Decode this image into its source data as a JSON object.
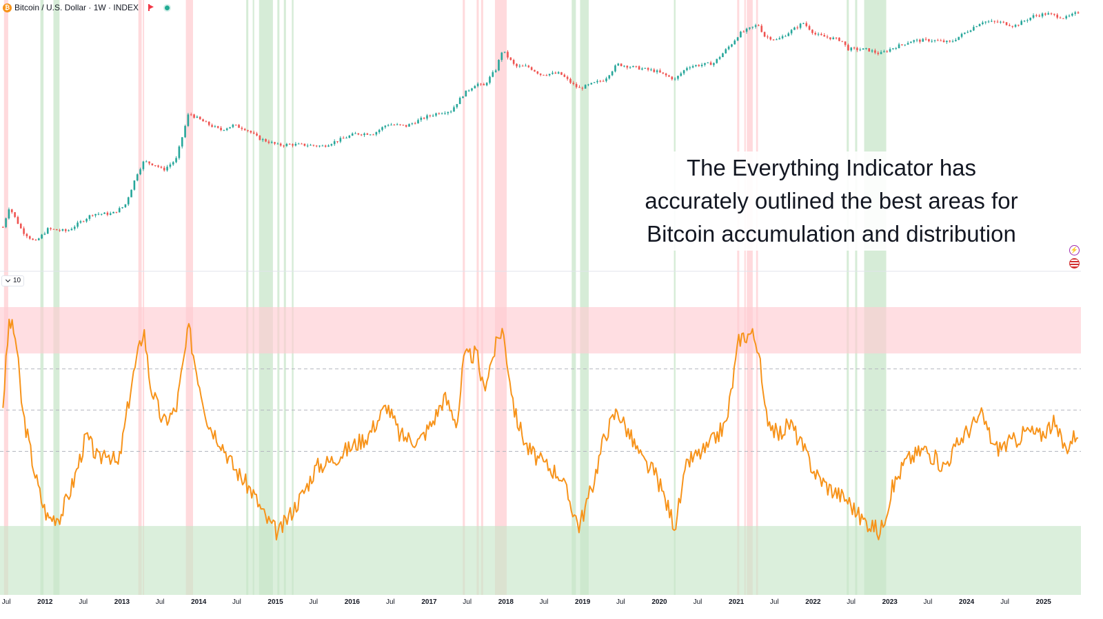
{
  "header": {
    "symbol_title": "Bitcoin / U.S. Dollar · 1W · INDEX",
    "symbol_icon": "bitcoin-icon",
    "flag_icon": "red-flag-icon",
    "status_icon": "market-open-dot-icon",
    "status_color": "#22ab94"
  },
  "indicator_pane": {
    "collapse_label": "10",
    "collapse_icon": "chevron-down-icon"
  },
  "side_icons": [
    "lightning-icon",
    "us-flag-icon"
  ],
  "annotation": {
    "lines": [
      "The Everything Indicator has",
      "accurately outlined the best areas for",
      "Bitcoin accumulation and distribution"
    ]
  },
  "colors": {
    "up_candle": "#26a69a",
    "down_candle": "#ef5350",
    "indicator_line": "#f7931a",
    "distribution_zone": "#ffcdd2",
    "accumulation_zone": "#c8e6c9"
  },
  "chart_data": [
    {
      "type": "line",
      "title": "Bitcoin / U.S. Dollar · 1W · INDEX",
      "x_axis": "date",
      "y_scale": "log",
      "x_range": [
        "2011-06",
        "2025-06"
      ],
      "y_axis_labels_shown": false,
      "grid": false,
      "x": [
        "2011-06",
        "2011-07",
        "2011-09",
        "2011-11",
        "2012-01",
        "2012-04",
        "2012-08",
        "2012-11",
        "2013-01",
        "2013-03",
        "2013-04",
        "2013-06",
        "2013-07",
        "2013-09",
        "2013-11",
        "2013-12",
        "2014-02",
        "2014-04",
        "2014-06",
        "2014-08",
        "2014-10",
        "2015-01",
        "2015-03",
        "2015-06",
        "2015-08",
        "2016-01",
        "2016-04",
        "2016-06",
        "2016-09",
        "2016-12",
        "2017-02",
        "2017-04",
        "2017-06",
        "2017-08",
        "2017-09",
        "2017-11",
        "2017-12",
        "2018-02",
        "2018-04",
        "2018-06",
        "2018-09",
        "2018-11",
        "2018-12",
        "2019-04",
        "2019-06",
        "2019-09",
        "2019-12",
        "2020-03",
        "2020-05",
        "2020-09",
        "2020-12",
        "2021-01",
        "2021-04",
        "2021-05",
        "2021-07",
        "2021-11",
        "2022-01",
        "2022-05",
        "2022-06",
        "2022-09",
        "2022-11",
        "2023-01",
        "2023-04",
        "2023-07",
        "2023-10",
        "2024-03",
        "2024-06",
        "2024-08",
        "2024-11",
        "2025-01",
        "2025-04",
        "2025-06"
      ],
      "close": [
        6,
        15,
        5,
        3,
        5.5,
        5,
        11,
        11,
        16,
        70,
        120,
        100,
        80,
        130,
        1100,
        900,
        650,
        500,
        620,
        520,
        340,
        250,
        260,
        250,
        240,
        420,
        430,
        650,
        600,
        900,
        1100,
        1200,
        2600,
        4200,
        3600,
        8000,
        19000,
        9000,
        9000,
        6300,
        6600,
        4000,
        3300,
        5000,
        10000,
        8500,
        7300,
        5000,
        9000,
        10500,
        27000,
        40000,
        61000,
        36000,
        30000,
        66000,
        38000,
        30000,
        20000,
        19500,
        16000,
        21000,
        29000,
        30000,
        27000,
        70000,
        67000,
        57000,
        90000,
        100000,
        82000,
        106000
      ]
    },
    {
      "type": "line",
      "name": "Everything Indicator",
      "x_axis": "date",
      "x_range": [
        "2011-06",
        "2025-06"
      ],
      "y_range": [
        0,
        1
      ],
      "y_axis_labels_shown": false,
      "reference_levels": [
        0.76,
        0.6,
        0.44
      ],
      "distribution_zone": [
        0.82,
        1.0
      ],
      "accumulation_zone": [
        0.0,
        0.15
      ],
      "x": [
        "2011-06",
        "2011-07",
        "2011-08",
        "2011-09",
        "2011-11",
        "2011-12",
        "2012-01",
        "2012-03",
        "2012-05",
        "2012-07",
        "2012-09",
        "2012-10",
        "2012-12",
        "2013-02",
        "2013-04",
        "2013-05",
        "2013-07",
        "2013-09",
        "2013-11",
        "2013-12",
        "2014-02",
        "2014-04",
        "2014-06",
        "2014-09",
        "2014-11",
        "2015-01",
        "2015-03",
        "2015-05",
        "2015-07",
        "2015-09",
        "2015-12",
        "2016-03",
        "2016-06",
        "2016-08",
        "2016-11",
        "2017-01",
        "2017-03",
        "2017-05",
        "2017-06",
        "2017-08",
        "2017-09",
        "2017-11",
        "2017-12",
        "2018-02",
        "2018-04",
        "2018-06",
        "2018-09",
        "2018-12",
        "2019-02",
        "2019-04",
        "2019-06",
        "2019-07",
        "2019-10",
        "2019-12",
        "2020-03",
        "2020-05",
        "2020-08",
        "2020-11",
        "2021-01",
        "2021-03",
        "2021-04",
        "2021-05",
        "2021-07",
        "2021-09",
        "2021-11",
        "2022-01",
        "2022-03",
        "2022-06",
        "2022-08",
        "2022-10",
        "2022-11",
        "2023-01",
        "2023-03",
        "2023-06",
        "2023-09",
        "2023-12",
        "2024-03",
        "2024-05",
        "2024-08",
        "2024-10",
        "2024-12",
        "2025-02",
        "2025-04",
        "2025-06"
      ],
      "values": [
        0.62,
        0.95,
        0.88,
        0.6,
        0.35,
        0.25,
        0.18,
        0.19,
        0.32,
        0.5,
        0.4,
        0.45,
        0.38,
        0.7,
        0.92,
        0.7,
        0.55,
        0.6,
        0.92,
        0.78,
        0.55,
        0.48,
        0.38,
        0.28,
        0.18,
        0.12,
        0.2,
        0.28,
        0.38,
        0.4,
        0.45,
        0.5,
        0.62,
        0.5,
        0.48,
        0.55,
        0.65,
        0.55,
        0.8,
        0.82,
        0.68,
        0.85,
        0.92,
        0.58,
        0.45,
        0.4,
        0.35,
        0.15,
        0.3,
        0.5,
        0.6,
        0.55,
        0.4,
        0.35,
        0.15,
        0.4,
        0.45,
        0.55,
        0.88,
        0.9,
        0.85,
        0.6,
        0.5,
        0.55,
        0.45,
        0.35,
        0.3,
        0.25,
        0.18,
        0.15,
        0.12,
        0.3,
        0.4,
        0.45,
        0.38,
        0.5,
        0.58,
        0.45,
        0.48,
        0.52,
        0.5,
        0.55,
        0.45,
        0.52
      ]
    },
    {
      "type": "area",
      "name": "signal bands",
      "distribution_bands": [
        [
          "2011-06-20",
          "2011-07-10"
        ],
        [
          "2013-03-20",
          "2013-04-05"
        ],
        [
          "2013-04-10",
          "2013-04-16"
        ],
        [
          "2013-11-01",
          "2013-12-05"
        ],
        [
          "2017-06-10",
          "2017-06-20"
        ],
        [
          "2017-08-15",
          "2017-08-25"
        ],
        [
          "2017-09-05",
          "2017-09-15"
        ],
        [
          "2017-11-10",
          "2018-01-05"
        ],
        [
          "2021-01-05",
          "2021-01-15"
        ],
        [
          "2021-02-08",
          "2021-02-15"
        ],
        [
          "2021-02-20",
          "2021-03-20"
        ],
        [
          "2021-04-05",
          "2021-04-14"
        ]
      ],
      "accumulation_bands": [
        [
          "2011-12-10",
          "2011-12-25"
        ],
        [
          "2012-02-10",
          "2012-03-10"
        ],
        [
          "2014-08-15",
          "2014-08-25"
        ],
        [
          "2014-09-15",
          "2014-09-22"
        ],
        [
          "2014-10-15",
          "2014-12-20"
        ],
        [
          "2015-01-10",
          "2015-01-20"
        ],
        [
          "2015-02-10",
          "2015-02-20"
        ],
        [
          "2015-03-20",
          "2015-03-28"
        ],
        [
          "2018-11-10",
          "2018-11-30"
        ],
        [
          "2018-12-20",
          "2019-01-30"
        ],
        [
          "2020-03-10",
          "2020-03-18"
        ],
        [
          "2022-06-10",
          "2022-06-20"
        ],
        [
          "2022-07-20",
          "2022-07-30"
        ],
        [
          "2022-09-01",
          "2022-12-15"
        ]
      ]
    }
  ],
  "x_axis": {
    "tick_labels": [
      {
        "label": "Jul",
        "date": "2011-07-01",
        "bold": false
      },
      {
        "label": "2012",
        "date": "2012-01-01",
        "bold": true
      },
      {
        "label": "Jul",
        "date": "2012-07-01",
        "bold": false
      },
      {
        "label": "2013",
        "date": "2013-01-01",
        "bold": true
      },
      {
        "label": "Jul",
        "date": "2013-07-01",
        "bold": false
      },
      {
        "label": "2014",
        "date": "2014-01-01",
        "bold": true
      },
      {
        "label": "Jul",
        "date": "2014-07-01",
        "bold": false
      },
      {
        "label": "2015",
        "date": "2015-01-01",
        "bold": true
      },
      {
        "label": "Jul",
        "date": "2015-07-01",
        "bold": false
      },
      {
        "label": "2016",
        "date": "2016-01-01",
        "bold": true
      },
      {
        "label": "Jul",
        "date": "2016-07-01",
        "bold": false
      },
      {
        "label": "2017",
        "date": "2017-01-01",
        "bold": true
      },
      {
        "label": "Jul",
        "date": "2017-07-01",
        "bold": false
      },
      {
        "label": "2018",
        "date": "2018-01-01",
        "bold": true
      },
      {
        "label": "Jul",
        "date": "2018-07-01",
        "bold": false
      },
      {
        "label": "2019",
        "date": "2019-01-01",
        "bold": true
      },
      {
        "label": "Jul",
        "date": "2019-07-01",
        "bold": false
      },
      {
        "label": "2020",
        "date": "2020-01-01",
        "bold": true
      },
      {
        "label": "Jul",
        "date": "2020-07-01",
        "bold": false
      },
      {
        "label": "2021",
        "date": "2021-01-01",
        "bold": true
      },
      {
        "label": "Jul",
        "date": "2021-07-01",
        "bold": false
      },
      {
        "label": "2022",
        "date": "2022-01-01",
        "bold": true
      },
      {
        "label": "Jul",
        "date": "2022-07-01",
        "bold": false
      },
      {
        "label": "2023",
        "date": "2023-01-01",
        "bold": true
      },
      {
        "label": "Jul",
        "date": "2023-07-01",
        "bold": false
      },
      {
        "label": "2024",
        "date": "2024-01-01",
        "bold": true
      },
      {
        "label": "Jul",
        "date": "2024-07-01",
        "bold": false
      },
      {
        "label": "2025",
        "date": "2025-01-01",
        "bold": true
      }
    ]
  }
}
